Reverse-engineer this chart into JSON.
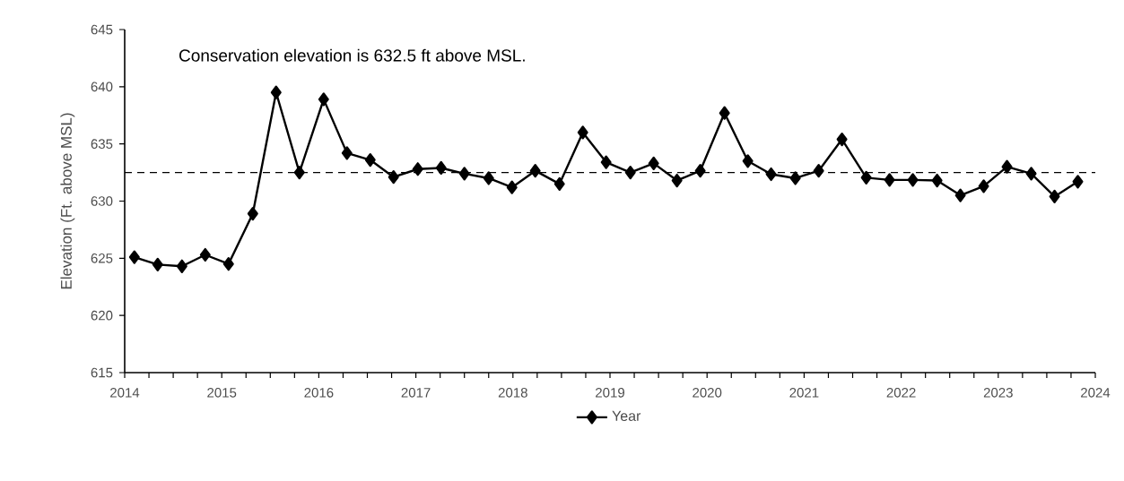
{
  "chart_data": {
    "type": "line",
    "ylabel": "Elevation (Ft. above MSL)",
    "annotations": [
      "Conservation elevation is 632.5 ft above MSL."
    ],
    "x": [
      2014.1,
      2014.34,
      2014.59,
      2014.83,
      2015.07,
      2015.32,
      2015.56,
      2015.8,
      2016.05,
      2016.29,
      2016.53,
      2016.77,
      2017.02,
      2017.26,
      2017.5,
      2017.75,
      2017.99,
      2018.23,
      2018.48,
      2018.72,
      2018.96,
      2019.21,
      2019.45,
      2019.69,
      2019.93,
      2020.18,
      2020.42,
      2020.66,
      2020.91,
      2021.15,
      2021.39,
      2021.64,
      2021.88,
      2022.12,
      2022.37,
      2022.61,
      2022.85,
      2023.09,
      2023.34,
      2023.58,
      2023.82
    ],
    "series": [
      {
        "name": "Year",
        "color": "#000000",
        "values": [
          625.1,
          624.45,
          624.3,
          625.3,
          624.5,
          628.9,
          639.5,
          632.5,
          638.9,
          634.2,
          633.6,
          632.1,
          632.8,
          632.9,
          632.4,
          632.0,
          631.2,
          632.65,
          631.5,
          636.0,
          633.4,
          632.5,
          633.3,
          631.8,
          632.65,
          637.7,
          633.5,
          632.35,
          632.0,
          632.65,
          635.4,
          632.05,
          631.85,
          631.85,
          631.8,
          630.5,
          631.3,
          633.0,
          632.4,
          630.4,
          631.7
        ]
      }
    ],
    "xlim": [
      2014,
      2024
    ],
    "xticks": [
      2014,
      {
        "value": 2014.25,
        "label": null
      },
      {
        "value": 2014.5,
        "label": null
      },
      {
        "value": 2014.75,
        "label": null
      },
      2015,
      {
        "value": 2015.25,
        "label": null
      },
      {
        "value": 2015.5,
        "label": null
      },
      {
        "value": 2015.75,
        "label": null
      },
      2016,
      {
        "value": 2016.25,
        "label": null
      },
      {
        "value": 2016.5,
        "label": null
      },
      {
        "value": 2016.75,
        "label": null
      },
      2017,
      {
        "value": 2017.25,
        "label": null
      },
      {
        "value": 2017.5,
        "label": null
      },
      {
        "value": 2017.75,
        "label": null
      },
      2018,
      {
        "value": 2018.25,
        "label": null
      },
      {
        "value": 2018.5,
        "label": null
      },
      {
        "value": 2018.75,
        "label": null
      },
      2019,
      {
        "value": 2019.25,
        "label": null
      },
      {
        "value": 2019.5,
        "label": null
      },
      {
        "value": 2019.75,
        "label": null
      },
      2020,
      {
        "value": 2020.25,
        "label": null
      },
      {
        "value": 2020.5,
        "label": null
      },
      {
        "value": 2020.75,
        "label": null
      },
      2021,
      {
        "value": 2021.25,
        "label": null
      },
      {
        "value": 2021.5,
        "label": null
      },
      {
        "value": 2021.75,
        "label": null
      },
      2022,
      {
        "value": 2022.25,
        "label": null
      },
      {
        "value": 2022.5,
        "label": null
      },
      {
        "value": 2022.75,
        "label": null
      },
      2023,
      {
        "value": 2023.25,
        "label": null
      },
      {
        "value": 2023.5,
        "label": null
      },
      {
        "value": 2023.75,
        "label": null
      },
      2024
    ],
    "ylim": [
      615,
      645
    ],
    "yticks": [
      615,
      620,
      625,
      630,
      635,
      640,
      645
    ],
    "ref_lines": [
      {
        "axis": "y",
        "value": 632.5,
        "color": "#000000",
        "line_style": "dashed"
      }
    ],
    "grid": false,
    "legend": "bottom",
    "marker": "diamond",
    "line_style": "solid"
  }
}
